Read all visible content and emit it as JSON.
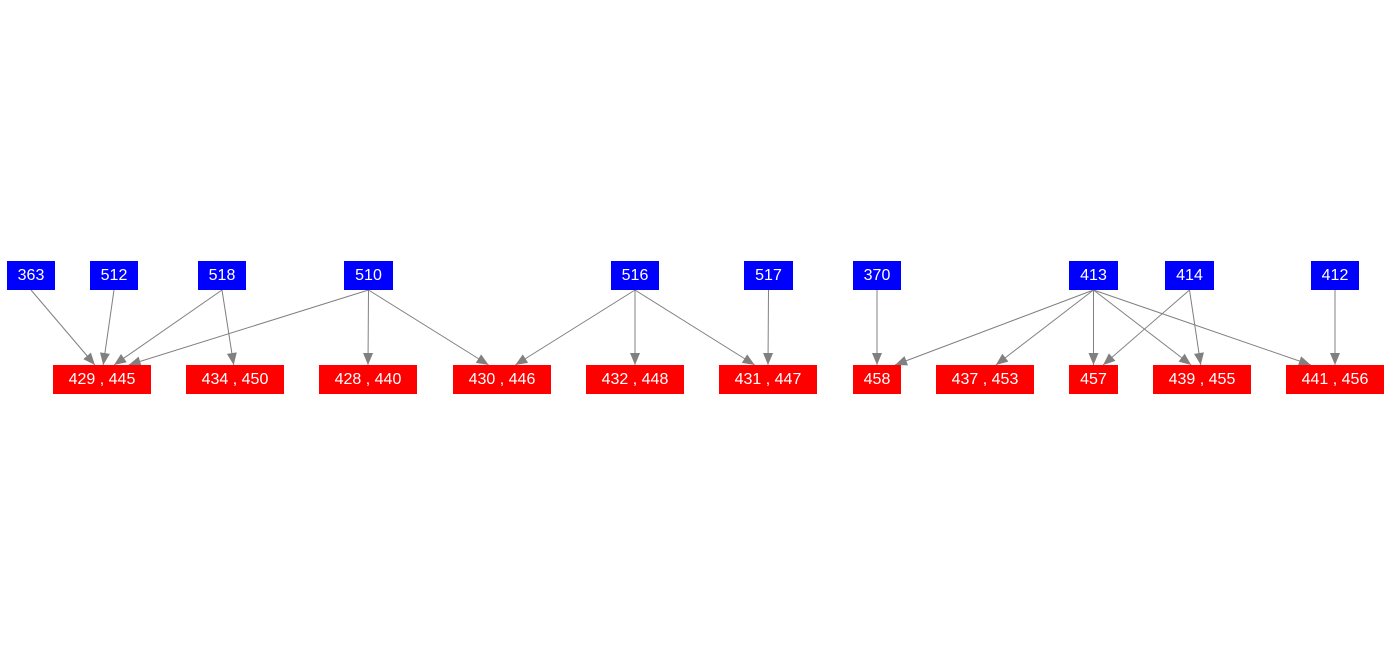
{
  "colors": {
    "source": "#0000ff",
    "target": "#ff0000",
    "edge": "#808080",
    "text": "#ffffff",
    "background": "#ffffff"
  },
  "sources": [
    {
      "id": "s363",
      "label": "363"
    },
    {
      "id": "s512",
      "label": "512"
    },
    {
      "id": "s518",
      "label": "518"
    },
    {
      "id": "s510",
      "label": "510"
    },
    {
      "id": "s516",
      "label": "516"
    },
    {
      "id": "s517",
      "label": "517"
    },
    {
      "id": "s370",
      "label": "370"
    },
    {
      "id": "s413",
      "label": "413"
    },
    {
      "id": "s414",
      "label": "414"
    },
    {
      "id": "s412",
      "label": "412"
    }
  ],
  "targets": [
    {
      "id": "t429",
      "label": "429 , 445"
    },
    {
      "id": "t434",
      "label": "434 , 450"
    },
    {
      "id": "t428",
      "label": "428 , 440"
    },
    {
      "id": "t430",
      "label": "430 , 446"
    },
    {
      "id": "t432",
      "label": "432 , 448"
    },
    {
      "id": "t431",
      "label": "431 , 447"
    },
    {
      "id": "t458",
      "label": "458"
    },
    {
      "id": "t437",
      "label": "437 , 453"
    },
    {
      "id": "t457",
      "label": "457"
    },
    {
      "id": "t439",
      "label": "439 , 455"
    },
    {
      "id": "t441",
      "label": "441 , 456"
    }
  ],
  "edges": [
    {
      "from": "s363",
      "to": "t429"
    },
    {
      "from": "s512",
      "to": "t429"
    },
    {
      "from": "s518",
      "to": "t429"
    },
    {
      "from": "s518",
      "to": "t434"
    },
    {
      "from": "s510",
      "to": "t429"
    },
    {
      "from": "s510",
      "to": "t428"
    },
    {
      "from": "s510",
      "to": "t430"
    },
    {
      "from": "s516",
      "to": "t430"
    },
    {
      "from": "s516",
      "to": "t432"
    },
    {
      "from": "s516",
      "to": "t431"
    },
    {
      "from": "s517",
      "to": "t431"
    },
    {
      "from": "s370",
      "to": "t458"
    },
    {
      "from": "s413",
      "to": "t458"
    },
    {
      "from": "s413",
      "to": "t437"
    },
    {
      "from": "s413",
      "to": "t457"
    },
    {
      "from": "s413",
      "to": "t439"
    },
    {
      "from": "s413",
      "to": "t441"
    },
    {
      "from": "s414",
      "to": "t457"
    },
    {
      "from": "s414",
      "to": "t439"
    },
    {
      "from": "s412",
      "to": "t441"
    }
  ]
}
